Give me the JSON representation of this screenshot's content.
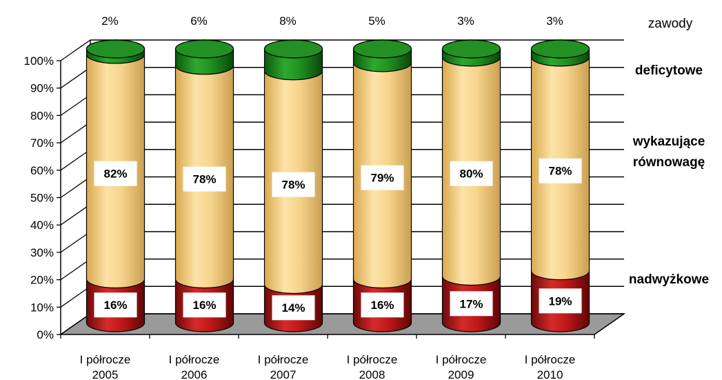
{
  "chart_data": {
    "type": "bar",
    "stacked": true,
    "style": "3d-cylinder",
    "title": "",
    "xlabel": "",
    "ylabel": "",
    "ylim": [
      0,
      100
    ],
    "yticks": [
      "0%",
      "10%",
      "20%",
      "30%",
      "40%",
      "50%",
      "60%",
      "70%",
      "80%",
      "90%",
      "100%"
    ],
    "grid": true,
    "categories": [
      [
        "I półrocze",
        "2005"
      ],
      [
        "I półrocze",
        "2006"
      ],
      [
        "I półrocze",
        "2007"
      ],
      [
        "I półrocze",
        "2008"
      ],
      [
        "I półrocze",
        "2009"
      ],
      [
        "I półrocze",
        "2010"
      ]
    ],
    "legend_header": "zawody",
    "series": [
      {
        "name": "nadwyżkowe",
        "color": "#b81414",
        "values": [
          16,
          16,
          14,
          16,
          17,
          19
        ],
        "labels": [
          "16%",
          "16%",
          "14%",
          "16%",
          "17%",
          "19%"
        ]
      },
      {
        "name": "wykazujące równowagę",
        "color": "#f6cf7e",
        "values": [
          82,
          78,
          78,
          79,
          80,
          78
        ],
        "labels": [
          "82%",
          "78%",
          "78%",
          "79%",
          "80%",
          "78%"
        ]
      },
      {
        "name": "deficytowe",
        "color": "#1e8a1e",
        "values": [
          2,
          6,
          8,
          5,
          3,
          3
        ],
        "labels": [
          "2%",
          "6%",
          "8%",
          "5%",
          "3%",
          "3%"
        ]
      }
    ],
    "legend_lines": [
      {
        "series": 2,
        "lines": [
          "deficytowe"
        ]
      },
      {
        "series": 1,
        "lines": [
          "wykazujące",
          "równowagę"
        ]
      },
      {
        "series": 0,
        "lines": [
          "nadwyżkowe"
        ]
      }
    ]
  }
}
